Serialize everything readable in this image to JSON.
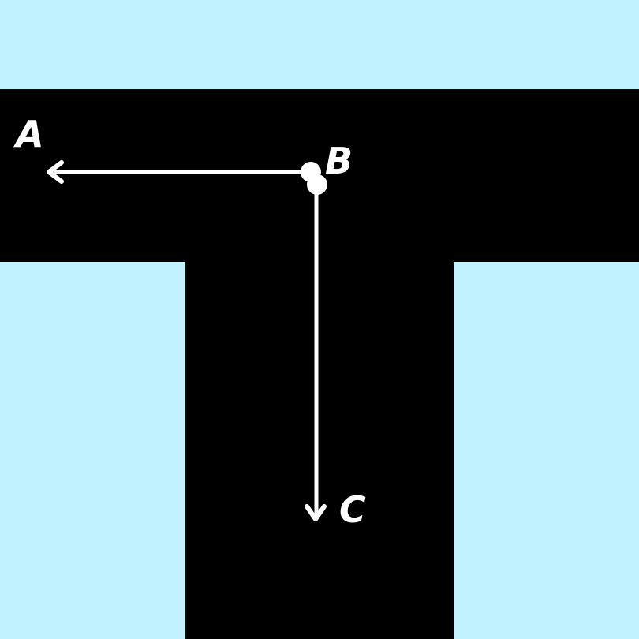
{
  "colors": {
    "background": "#c0f2ff",
    "road": "#000000",
    "path": "#ffffff",
    "label": "#ffffff"
  },
  "points": {
    "a": {
      "label": "A"
    },
    "b": {
      "label": "B"
    },
    "c": {
      "label": "C"
    }
  },
  "arrows": [
    {
      "from": "B",
      "to": "A"
    },
    {
      "from": "B",
      "to": "C"
    }
  ]
}
